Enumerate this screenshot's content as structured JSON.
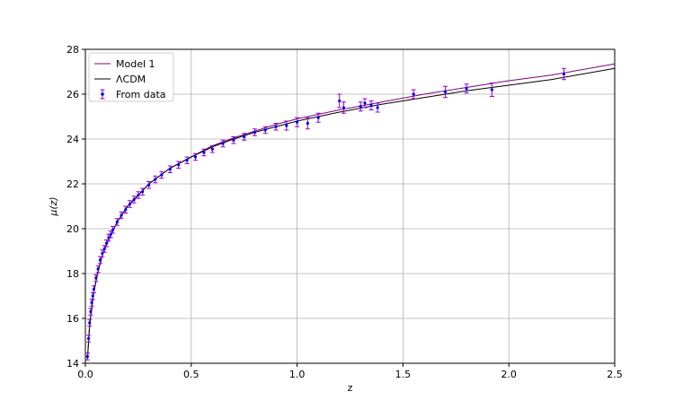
{
  "chart_data": {
    "type": "scatter",
    "title": "",
    "xlabel": "z",
    "ylabel": "μ(z)",
    "xlim": [
      0,
      2.5
    ],
    "ylim": [
      14,
      28
    ],
    "xticks": [
      "0.0",
      "0.5",
      "1.0",
      "1.5",
      "2.0",
      "2.5"
    ],
    "yticks": [
      "14",
      "16",
      "18",
      "20",
      "22",
      "24",
      "26",
      "28"
    ],
    "grid": true,
    "legend_position": "top-left",
    "series": [
      {
        "name": "Model 1",
        "kind": "line",
        "color": "#800080",
        "x": [
          0.01,
          0.02,
          0.04,
          0.06,
          0.08,
          0.1,
          0.15,
          0.2,
          0.3,
          0.4,
          0.5,
          0.6,
          0.7,
          0.8,
          0.9,
          1.0,
          1.2,
          1.4,
          1.6,
          1.8,
          2.0,
          2.2,
          2.5
        ],
        "y": [
          14.2,
          15.7,
          17.2,
          18.1,
          18.8,
          19.3,
          20.3,
          21.0,
          22.0,
          22.7,
          23.2,
          23.7,
          24.05,
          24.35,
          24.65,
          24.9,
          25.3,
          25.65,
          26.0,
          26.3,
          26.6,
          26.85,
          27.35
        ]
      },
      {
        "name": "ΛCDM",
        "kind": "line",
        "color": "#000000",
        "x": [
          0.01,
          0.02,
          0.04,
          0.06,
          0.08,
          0.1,
          0.15,
          0.2,
          0.3,
          0.4,
          0.5,
          0.6,
          0.7,
          0.8,
          0.9,
          1.0,
          1.2,
          1.4,
          1.6,
          1.8,
          2.0,
          2.2,
          2.5
        ],
        "y": [
          14.2,
          15.7,
          17.2,
          18.1,
          18.8,
          19.3,
          20.3,
          21.0,
          22.0,
          22.7,
          23.2,
          23.65,
          24.0,
          24.3,
          24.55,
          24.8,
          25.2,
          25.55,
          25.85,
          26.15,
          26.4,
          26.65,
          27.15
        ]
      },
      {
        "name": "From data",
        "kind": "errorbar",
        "color": "#0000ff",
        "error_color": "#9400d3",
        "x": [
          0.01,
          0.015,
          0.02,
          0.025,
          0.03,
          0.035,
          0.04,
          0.05,
          0.06,
          0.07,
          0.08,
          0.09,
          0.1,
          0.11,
          0.12,
          0.13,
          0.15,
          0.17,
          0.19,
          0.21,
          0.23,
          0.25,
          0.27,
          0.3,
          0.33,
          0.36,
          0.4,
          0.44,
          0.48,
          0.52,
          0.56,
          0.6,
          0.65,
          0.7,
          0.75,
          0.8,
          0.85,
          0.9,
          0.95,
          1.0,
          1.05,
          1.1,
          1.2,
          1.22,
          1.3,
          1.32,
          1.35,
          1.38,
          1.55,
          1.7,
          1.8,
          1.92,
          2.26
        ],
        "y": [
          14.3,
          15.1,
          15.8,
          16.3,
          16.7,
          17.0,
          17.3,
          17.8,
          18.2,
          18.6,
          18.9,
          19.1,
          19.35,
          19.6,
          19.75,
          19.95,
          20.3,
          20.6,
          20.85,
          21.1,
          21.3,
          21.5,
          21.65,
          21.95,
          22.2,
          22.4,
          22.65,
          22.85,
          23.05,
          23.2,
          23.4,
          23.55,
          23.8,
          23.95,
          24.1,
          24.3,
          24.4,
          24.55,
          24.6,
          24.75,
          24.7,
          24.95,
          25.7,
          25.4,
          25.45,
          25.6,
          25.5,
          25.4,
          26.0,
          26.1,
          26.25,
          26.2,
          26.9
        ],
        "yerr": [
          0.15,
          0.15,
          0.15,
          0.15,
          0.15,
          0.15,
          0.15,
          0.15,
          0.15,
          0.15,
          0.15,
          0.15,
          0.15,
          0.15,
          0.15,
          0.15,
          0.15,
          0.15,
          0.15,
          0.15,
          0.15,
          0.15,
          0.15,
          0.15,
          0.15,
          0.15,
          0.15,
          0.15,
          0.15,
          0.15,
          0.15,
          0.15,
          0.15,
          0.15,
          0.15,
          0.15,
          0.15,
          0.15,
          0.2,
          0.2,
          0.25,
          0.2,
          0.3,
          0.25,
          0.2,
          0.2,
          0.2,
          0.2,
          0.2,
          0.25,
          0.2,
          0.3,
          0.25
        ]
      }
    ]
  }
}
